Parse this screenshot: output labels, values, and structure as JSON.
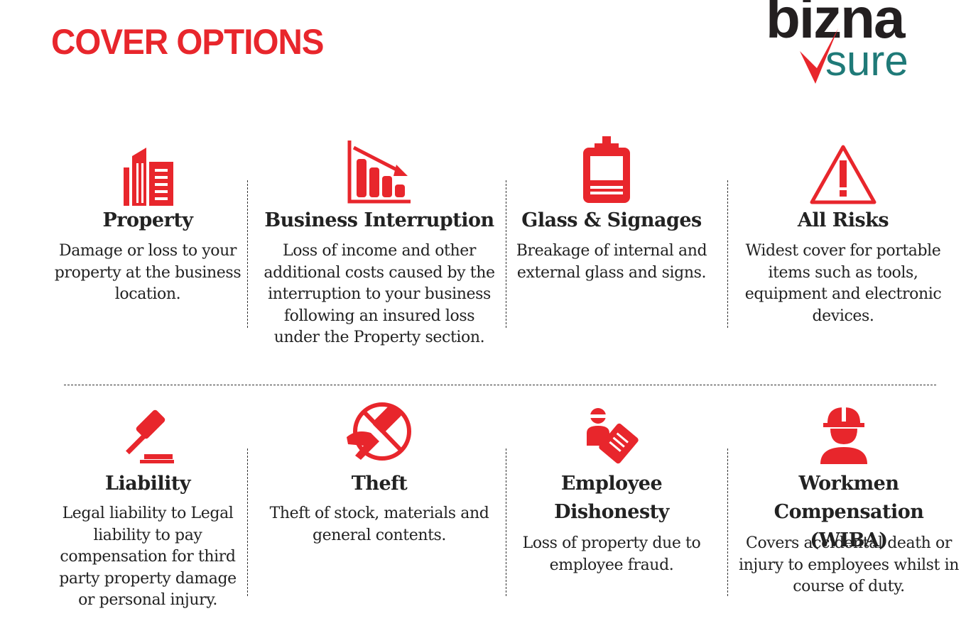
{
  "page": {
    "title": "COVER OPTIONS"
  },
  "logo": {
    "top": "bizna",
    "bottom": "sure"
  },
  "colors": {
    "accent": "#e8262c",
    "logo_dark": "#231f20",
    "logo_teal": "#1f7a78"
  },
  "covers": [
    {
      "icon": "building-icon",
      "title": "Property",
      "description": "Damage or loss to your property at the business location."
    },
    {
      "icon": "declining-chart-icon",
      "title": "Business Interruption",
      "description": "Loss of income and other additional costs caused by the interruption to your business following an insured loss under the Property section."
    },
    {
      "icon": "sign-board-icon",
      "title": "Glass & Signages",
      "description": "Breakage of internal and external glass and signs."
    },
    {
      "icon": "warning-triangle-icon",
      "title": "All Risks",
      "description": "Widest cover for portable items such as tools, equipment and electronic devices."
    },
    {
      "icon": "gavel-icon",
      "title": "Liability",
      "description": "Legal liability to Legal liability to pay compensation for third party property damage or personal injury."
    },
    {
      "icon": "no-theft-icon",
      "title": "Theft",
      "description": "Theft of stock, materials and general contents."
    },
    {
      "icon": "thief-card-icon",
      "title": "Employee Dishonesty",
      "description": "Loss of property due to employee fraud."
    },
    {
      "icon": "hard-hat-worker-icon",
      "title": "Workmen Compensation (WIBA)",
      "description": "Covers accidental death or injury to employees whilst in course of duty."
    }
  ]
}
